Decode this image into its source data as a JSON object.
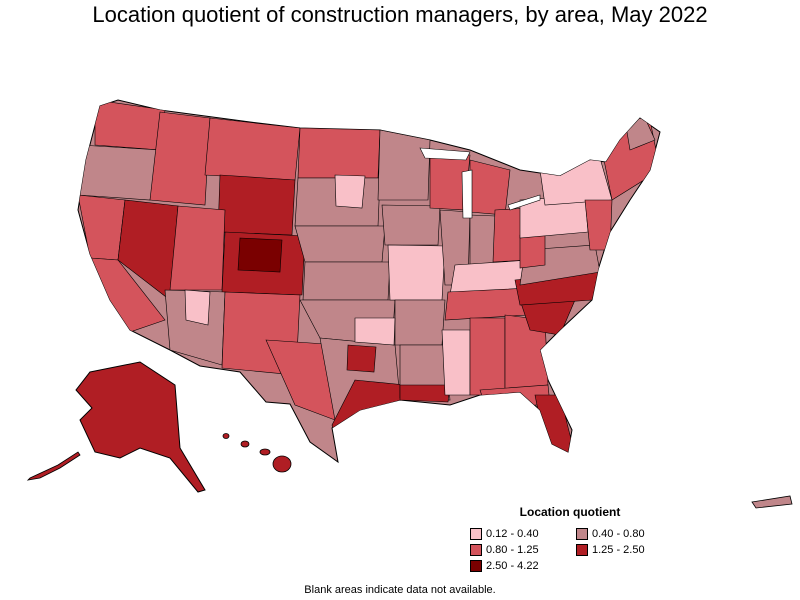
{
  "title": "Location quotient of construction managers, by area, May 2022",
  "legend": {
    "title": "Location quotient",
    "items": [
      {
        "label": "0.12 - 0.40",
        "color": "#f9c0c8"
      },
      {
        "label": "0.40 - 0.80",
        "color": "#c0868a"
      },
      {
        "label": "0.80 - 1.25",
        "color": "#d4545c"
      },
      {
        "label": "1.25 - 2.50",
        "color": "#b01e24"
      },
      {
        "label": "2.50 - 4.22",
        "color": "#7a0000"
      }
    ]
  },
  "note": "Blank areas indicate data not available."
}
